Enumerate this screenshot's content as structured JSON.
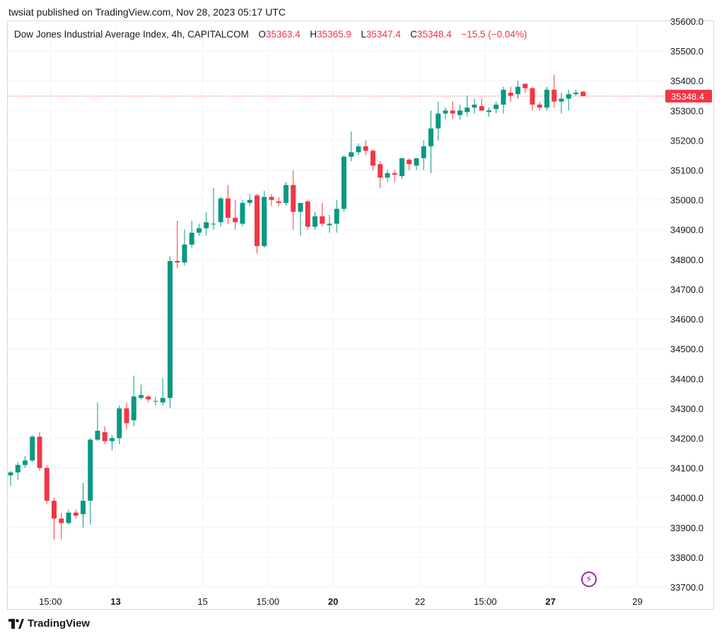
{
  "publisher": "twsiat published on TradingView.com, Nov 28, 2023 05:17 UTC",
  "legend": {
    "title": "Dow Jones Industrial Average Index, 4h, CAPITALCOM",
    "o_label": "O",
    "o": "35363.4",
    "h_label": "H",
    "h": "35365.9",
    "l_label": "L",
    "l": "35347.4",
    "c_label": "C",
    "c": "35348.4",
    "change": "−15.5 (−0.04%)"
  },
  "footer": {
    "brand": "TradingView"
  },
  "colors": {
    "up": "#089981",
    "down": "#f23645",
    "grid": "#f0f3fa",
    "price_line": "#f23645",
    "badge_icon": "#9c27b0"
  },
  "icons": {
    "logo": "tradingview-logo-icon",
    "badge": "lightning-bolt-icon"
  },
  "chart_data": {
    "type": "candlestick",
    "interval": "4h",
    "y_range": [
      33700,
      35600
    ],
    "y_ticks": [
      "35600.0",
      "35500.0",
      "35400.0",
      "35300.0",
      "35200.0",
      "35100.0",
      "35000.0",
      "34900.0",
      "34800.0",
      "34700.0",
      "34600.0",
      "34500.0",
      "34400.0",
      "34300.0",
      "34200.0",
      "34100.0",
      "34000.0",
      "33900.0",
      "33800.0",
      "33700.0"
    ],
    "x_ticks": [
      {
        "label": "15:00",
        "bar": 5.5,
        "bold": false
      },
      {
        "label": "13",
        "bar": 14.5,
        "bold": true
      },
      {
        "label": "15",
        "bar": 26.5,
        "bold": false
      },
      {
        "label": "15:00",
        "bar": 35.5,
        "bold": false
      },
      {
        "label": "20",
        "bar": 44.5,
        "bold": true
      },
      {
        "label": "22",
        "bar": 56.5,
        "bold": false
      },
      {
        "label": "15:00",
        "bar": 65.5,
        "bold": false
      },
      {
        "label": "27",
        "bar": 74.5,
        "bold": true
      },
      {
        "label": "29",
        "bar": 86.5,
        "bold": false
      }
    ],
    "last_price": 35348.4,
    "last_price_label": "35348.4",
    "candles": [
      [
        34075,
        34090,
        34040,
        34085
      ],
      [
        34085,
        34120,
        34060,
        34110
      ],
      [
        34110,
        34140,
        34100,
        34125
      ],
      [
        34125,
        34210,
        34120,
        34205
      ],
      [
        34205,
        34220,
        34090,
        34100
      ],
      [
        34100,
        34110,
        33980,
        33990
      ],
      [
        33990,
        34000,
        33860,
        33930
      ],
      [
        33930,
        33950,
        33860,
        33915
      ],
      [
        33915,
        33960,
        33910,
        33950
      ],
      [
        33950,
        33960,
        33930,
        33940
      ],
      [
        33945,
        34050,
        33900,
        33990
      ],
      [
        33990,
        34200,
        33910,
        34195
      ],
      [
        34195,
        34320,
        34190,
        34225
      ],
      [
        34220,
        34240,
        34180,
        34190
      ],
      [
        34190,
        34210,
        34160,
        34200
      ],
      [
        34200,
        34310,
        34180,
        34300
      ],
      [
        34300,
        34320,
        34230,
        34250
      ],
      [
        34260,
        34410,
        34240,
        34340
      ],
      [
        34335,
        34380,
        34330,
        34345
      ],
      [
        34340,
        34345,
        34320,
        34330
      ],
      [
        34325,
        34340,
        34310,
        34325
      ],
      [
        34320,
        34400,
        34310,
        34335
      ],
      [
        34335,
        34810,
        34300,
        34795
      ],
      [
        34795,
        34930,
        34770,
        34790
      ],
      [
        34790,
        34900,
        34780,
        34850
      ],
      [
        34850,
        34930,
        34840,
        34890
      ],
      [
        34890,
        34920,
        34880,
        34905
      ],
      [
        34905,
        34960,
        34880,
        34925
      ],
      [
        34920,
        35040,
        34900,
        34920
      ],
      [
        34925,
        35010,
        34910,
        35005
      ],
      [
        35005,
        35050,
        34920,
        34940
      ],
      [
        34940,
        35000,
        34900,
        34925
      ],
      [
        34920,
        35000,
        34910,
        34990
      ],
      [
        34990,
        35020,
        34980,
        35000
      ],
      [
        35015,
        35020,
        34820,
        34845
      ],
      [
        34845,
        35030,
        34840,
        35010
      ],
      [
        35010,
        35020,
        34980,
        35000
      ],
      [
        34995,
        35010,
        34980,
        34990
      ],
      [
        34990,
        35060,
        34980,
        35050
      ],
      [
        35050,
        35100,
        34900,
        34960
      ],
      [
        34960,
        34990,
        34880,
        34990
      ],
      [
        34995,
        35000,
        34900,
        34910
      ],
      [
        34910,
        34960,
        34900,
        34945
      ],
      [
        34945,
        34990,
        34910,
        34920
      ],
      [
        34915,
        34950,
        34890,
        34920
      ],
      [
        34920,
        35000,
        34890,
        34970
      ],
      [
        34970,
        35150,
        34960,
        35145
      ],
      [
        35145,
        35230,
        35130,
        35160
      ],
      [
        35160,
        35190,
        35150,
        35180
      ],
      [
        35180,
        35200,
        35150,
        35165
      ],
      [
        35165,
        35170,
        35100,
        35115
      ],
      [
        35120,
        35130,
        35040,
        35075
      ],
      [
        35075,
        35100,
        35060,
        35090
      ],
      [
        35090,
        35100,
        35060,
        35085
      ],
      [
        35080,
        35140,
        35070,
        35140
      ],
      [
        35135,
        35140,
        35100,
        35120
      ],
      [
        35115,
        35140,
        35100,
        35140
      ],
      [
        35140,
        35200,
        35100,
        35180
      ],
      [
        35180,
        35300,
        35090,
        35240
      ],
      [
        35240,
        35330,
        35200,
        35290
      ],
      [
        35290,
        35310,
        35270,
        35300
      ],
      [
        35300,
        35330,
        35270,
        35290
      ],
      [
        35285,
        35320,
        35270,
        35300
      ],
      [
        35295,
        35350,
        35280,
        35310
      ],
      [
        35310,
        35340,
        35290,
        35320
      ],
      [
        35315,
        35340,
        35300,
        35300
      ],
      [
        35295,
        35310,
        35280,
        35300
      ],
      [
        35305,
        35330,
        35290,
        35320
      ],
      [
        35320,
        35380,
        35290,
        35370
      ],
      [
        35360,
        35380,
        35330,
        35350
      ],
      [
        35355,
        35400,
        35340,
        35380
      ],
      [
        35390,
        35390,
        35360,
        35375
      ],
      [
        35375,
        35380,
        35300,
        35320
      ],
      [
        35320,
        35330,
        35300,
        35310
      ],
      [
        35310,
        35380,
        35300,
        35370
      ],
      [
        35370,
        35420,
        35310,
        35330
      ],
      [
        35330,
        35360,
        35290,
        35340
      ],
      [
        35340,
        35370,
        35300,
        35355
      ],
      [
        35355,
        35370,
        35350,
        35360
      ],
      [
        35363.4,
        35365.9,
        35347.4,
        35348.4
      ]
    ]
  }
}
